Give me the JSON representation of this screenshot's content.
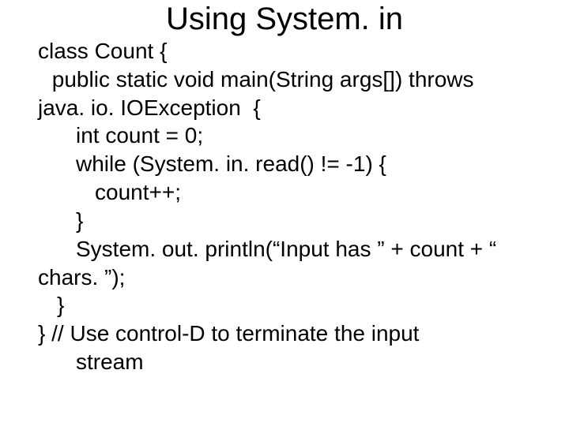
{
  "slide": {
    "title": "Using System. in",
    "code": {
      "line1": "class Count {",
      "line2": " public static void main(String args[]) throws",
      "line3": "java. io. IOException  {",
      "line4": "int count = 0;",
      "line5": "while (System. in. read() != -1) {",
      "line6": "count++;",
      "line7": "}",
      "line8": "System. out. println(“Input has ” + count + “",
      "line9": "chars. ”);",
      "line10": "}",
      "line11": "} // Use control-D to terminate the input",
      "line12": "stream"
    }
  },
  "style": {
    "background_color": "#ffffff",
    "text_color": "#000000",
    "title_fontsize": 40,
    "body_fontsize": 28,
    "font_family": "Arial"
  }
}
